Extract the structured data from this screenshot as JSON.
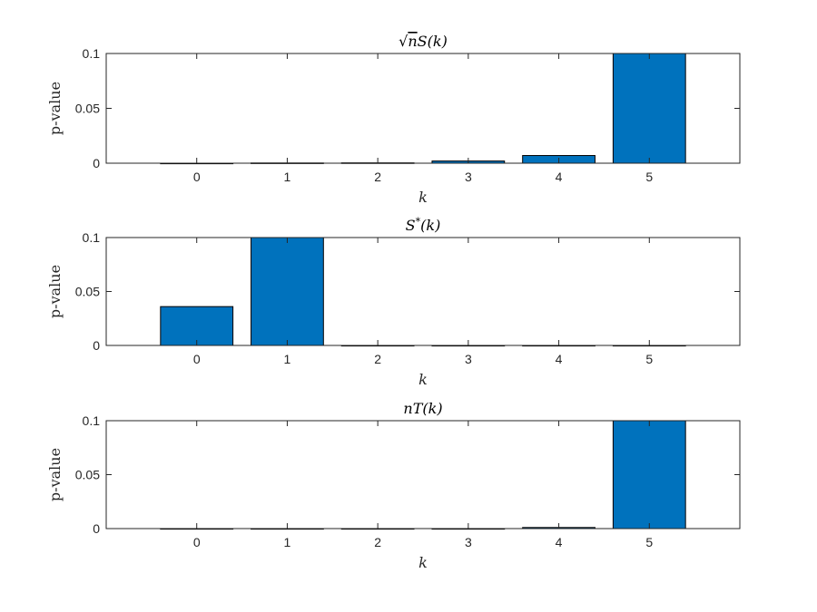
{
  "colors": {
    "bar": "#0072BD",
    "bar_edge": "#000000",
    "axis": "#262626"
  },
  "chart_data": [
    {
      "type": "bar",
      "title": "√nS(k)",
      "xlabel": "k",
      "ylabel": "p-value",
      "categories": [
        "0",
        "1",
        "2",
        "3",
        "4",
        "5"
      ],
      "values": [
        0.0,
        0.0002,
        0.0003,
        0.002,
        0.007,
        0.1
      ],
      "xlim": [
        -1,
        6
      ],
      "ylim": [
        0,
        0.1
      ],
      "yticks": [
        "0",
        "0.05",
        "0.1"
      ],
      "grid": false
    },
    {
      "type": "bar",
      "title": "S*(k)",
      "xlabel": "k",
      "ylabel": "p-value",
      "categories": [
        "0",
        "1",
        "2",
        "3",
        "4",
        "5"
      ],
      "values": [
        0.036,
        0.1,
        0.0,
        0.0,
        0.0,
        0.0
      ],
      "xlim": [
        -1,
        6
      ],
      "ylim": [
        0,
        0.1
      ],
      "yticks": [
        "0",
        "0.05",
        "0.1"
      ],
      "grid": false
    },
    {
      "type": "bar",
      "title": "nT(k)",
      "xlabel": "k",
      "ylabel": "p-value",
      "categories": [
        "0",
        "1",
        "2",
        "3",
        "4",
        "5"
      ],
      "values": [
        0.0,
        0.0,
        0.0,
        0.0,
        0.001,
        0.1
      ],
      "xlim": [
        -1,
        6
      ],
      "ylim": [
        0,
        0.1
      ],
      "yticks": [
        "0",
        "0.05",
        "0.1"
      ],
      "grid": false
    }
  ]
}
